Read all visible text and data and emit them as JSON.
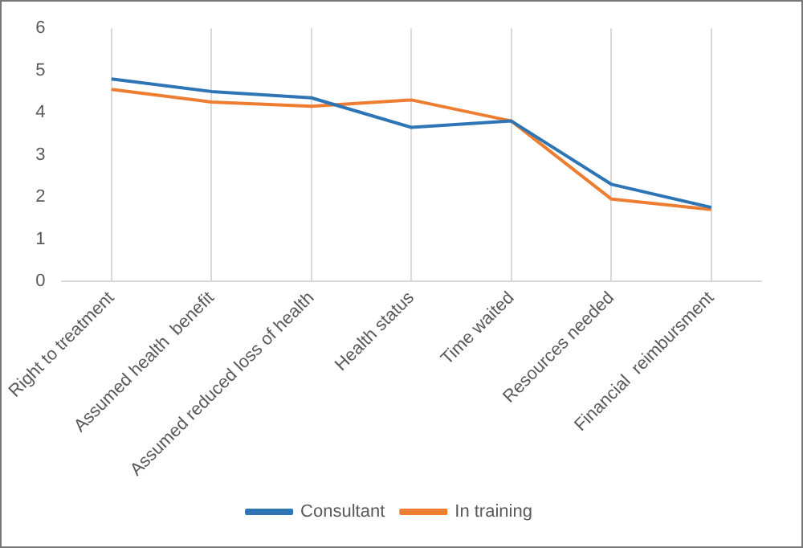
{
  "chart_data": {
    "type": "line",
    "categories": [
      "Right to treatment",
      "Assumed health  benefit",
      "Assumed reduced loss of health",
      "Health status",
      "Time waited",
      "Resources needed",
      "Financial  reimbursment"
    ],
    "series": [
      {
        "name": "Consultant",
        "color": "#2e75b6",
        "values": [
          4.8,
          4.5,
          4.35,
          3.65,
          3.8,
          2.3,
          1.75
        ]
      },
      {
        "name": "In training",
        "color": "#ed7d31",
        "values": [
          4.55,
          4.25,
          4.15,
          4.3,
          3.8,
          1.95,
          1.7
        ]
      }
    ],
    "ylim": [
      0,
      6
    ],
    "yticks": [
      0,
      1,
      2,
      3,
      4,
      5,
      6
    ],
    "grid": "x",
    "legend": "bottom",
    "marker": "none",
    "line_style": "solid"
  }
}
